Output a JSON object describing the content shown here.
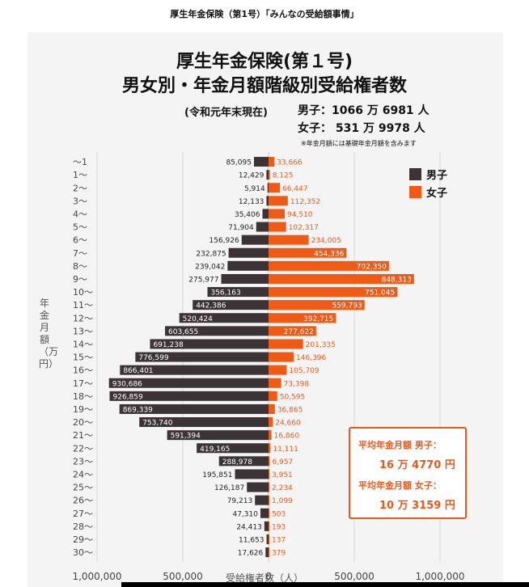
{
  "header": {
    "title": "厚生年金保険（第1号）「みんなの受給額事情」"
  },
  "colors": {
    "male": "#3b3336",
    "female": "#ef5a17",
    "panel": "#f4f4f4",
    "grid": "#d9d9d9",
    "accent": "#e85a1c"
  },
  "legend": {
    "male": "男子",
    "female": "女子"
  },
  "totals": {
    "male": "男子：1066 万 6981 人",
    "female": "女子：  531 万 9978 人"
  },
  "average_box": {
    "male_label": "平均年金月額 男子：",
    "male_value": "16 万 4770 円",
    "female_label": "平均年金月額 女子：",
    "female_value": "10 万 3159 円"
  },
  "chart_data": {
    "type": "bar",
    "orientation": "horizontal-population-pyramid",
    "title": "厚生年金保険(第１号)",
    "subtitle": "男女別・年金月額階級別受給権者数",
    "date_note": "(令和元年末現在)",
    "note": "※年金月額には基礎年金月額を含みます",
    "xlabel": "受給権者数（人）",
    "ylabel": "年金月額（万円）",
    "xlim": [
      -1000000,
      1000000
    ],
    "xticks": [
      "1,000,000",
      "500,000",
      "0",
      "500,000",
      "1,000,000"
    ],
    "categories": [
      "～1",
      "1～",
      "2～",
      "3～",
      "4～",
      "5～",
      "6～",
      "7～",
      "8～",
      "9～",
      "10～",
      "11～",
      "12～",
      "13～",
      "14～",
      "15～",
      "16～",
      "17～",
      "18～",
      "19～",
      "20～",
      "21～",
      "22～",
      "23～",
      "24～",
      "25～",
      "26～",
      "27～",
      "28～",
      "29～",
      "30～"
    ],
    "series": [
      {
        "name": "男子",
        "side": "left",
        "values": [
          85095,
          12429,
          5914,
          12133,
          35406,
          71904,
          156926,
          232875,
          239042,
          275977,
          356163,
          442386,
          520424,
          603655,
          691238,
          776599,
          866401,
          930686,
          926859,
          869339,
          753740,
          591394,
          419165,
          288978,
          195851,
          126187,
          79213,
          47310,
          24413,
          11653,
          17626
        ],
        "labels": [
          "85,095",
          "12,429",
          "5,914",
          "12,133",
          "35,406",
          "71,904",
          "156,926",
          "232,875",
          "239,042",
          "275,977",
          "356,163",
          "442,386",
          "520,424",
          "603,655",
          "691,238",
          "776,599",
          "866,401",
          "930,686",
          "926,859",
          "869,339",
          "753,740",
          "591,394",
          "419,165",
          "288,978",
          "195,851",
          "126,187",
          "79,213",
          "47,310",
          "24,413",
          "11,653",
          "17,626"
        ]
      },
      {
        "name": "女子",
        "side": "right",
        "values": [
          33666,
          8125,
          66447,
          112352,
          94510,
          102317,
          234005,
          454336,
          702350,
          848313,
          751045,
          559793,
          392715,
          277622,
          201335,
          146396,
          105709,
          73398,
          50595,
          36865,
          24660,
          16860,
          11111,
          6957,
          3951,
          2234,
          1099,
          503,
          193,
          137,
          379
        ],
        "labels": [
          "33,666",
          "8,125",
          "66,447",
          "112,352",
          "94,510",
          "102,317",
          "234,005",
          "454,336",
          "702,350",
          "848,313",
          "751,045",
          "559,793",
          "392,715",
          "277,622",
          "201,335",
          "146,396",
          "105,709",
          "73,398",
          "50,595",
          "36,865",
          "24,660",
          "16,860",
          "11,111",
          "6,957",
          "3,951",
          "2,234",
          "1,099",
          "503",
          "193",
          "137",
          "379"
        ]
      }
    ],
    "grid": true,
    "legend_position": "top-right"
  }
}
